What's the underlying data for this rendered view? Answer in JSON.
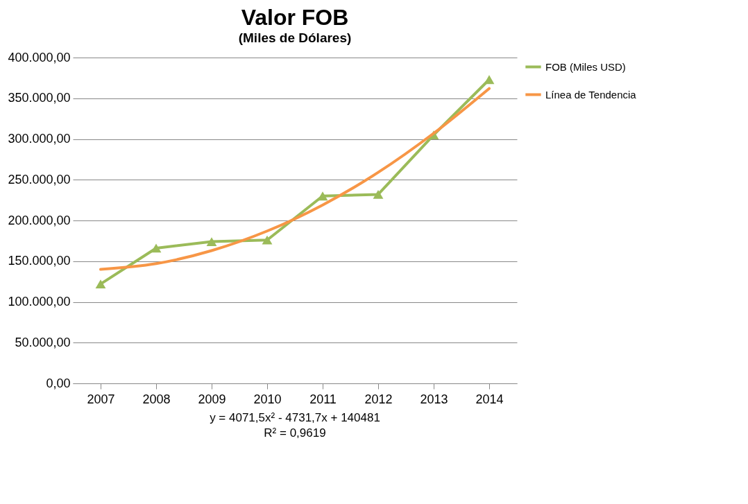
{
  "chart_data": {
    "type": "line",
    "title": "Valor FOB",
    "subtitle": "(Miles de Dólares)",
    "categories": [
      "2007",
      "2008",
      "2009",
      "2010",
      "2011",
      "2012",
      "2013",
      "2014"
    ],
    "series": [
      {
        "name": "FOB (Miles USD)",
        "color": "#9bbb59",
        "marker": "triangle",
        "values": [
          122000,
          166000,
          174000,
          176000,
          230000,
          232000,
          305000,
          373000
        ]
      },
      {
        "name": "Línea de Tendencia",
        "color": "#f79646",
        "values": [
          140000,
          147000,
          163000,
          187000,
          219000,
          259000,
          307000,
          362000
        ]
      }
    ],
    "ylim": [
      0,
      400000
    ],
    "yticks": [
      {
        "value": 0,
        "label": "0,00"
      },
      {
        "value": 50000,
        "label": "50.000,00"
      },
      {
        "value": 100000,
        "label": "100.000,00"
      },
      {
        "value": 150000,
        "label": "150.000,00"
      },
      {
        "value": 200000,
        "label": "200.000,00"
      },
      {
        "value": 250000,
        "label": "250.000,00"
      },
      {
        "value": 300000,
        "label": "300.000,00"
      },
      {
        "value": 350000,
        "label": "350.000,00"
      },
      {
        "value": 400000,
        "label": "400.000,00"
      }
    ],
    "grid": "y",
    "legend": "right",
    "line_style": "solid",
    "annotations": [
      "y = 4071,5x² - 4731,7x + 140481",
      "R² = 0,9619"
    ]
  }
}
